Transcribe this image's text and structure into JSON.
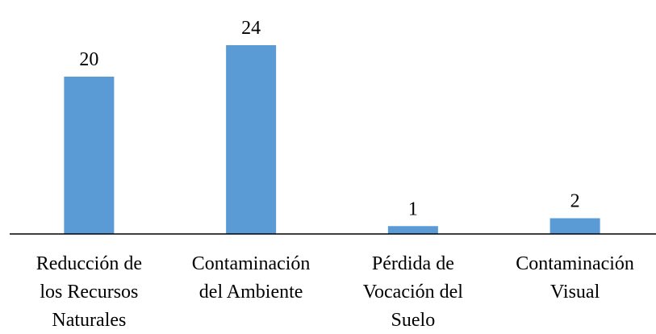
{
  "chart_data": {
    "type": "bar",
    "categories": [
      "Reducción de\nlos Recursos\nNaturales",
      "Contaminación\ndel Ambiente",
      "Pérdida de\nVocación del\nSuelo",
      "Contaminación\nVisual"
    ],
    "values": [
      20,
      24,
      1,
      2
    ],
    "color": "#5b9bd5",
    "ylim": [
      0,
      24
    ]
  }
}
